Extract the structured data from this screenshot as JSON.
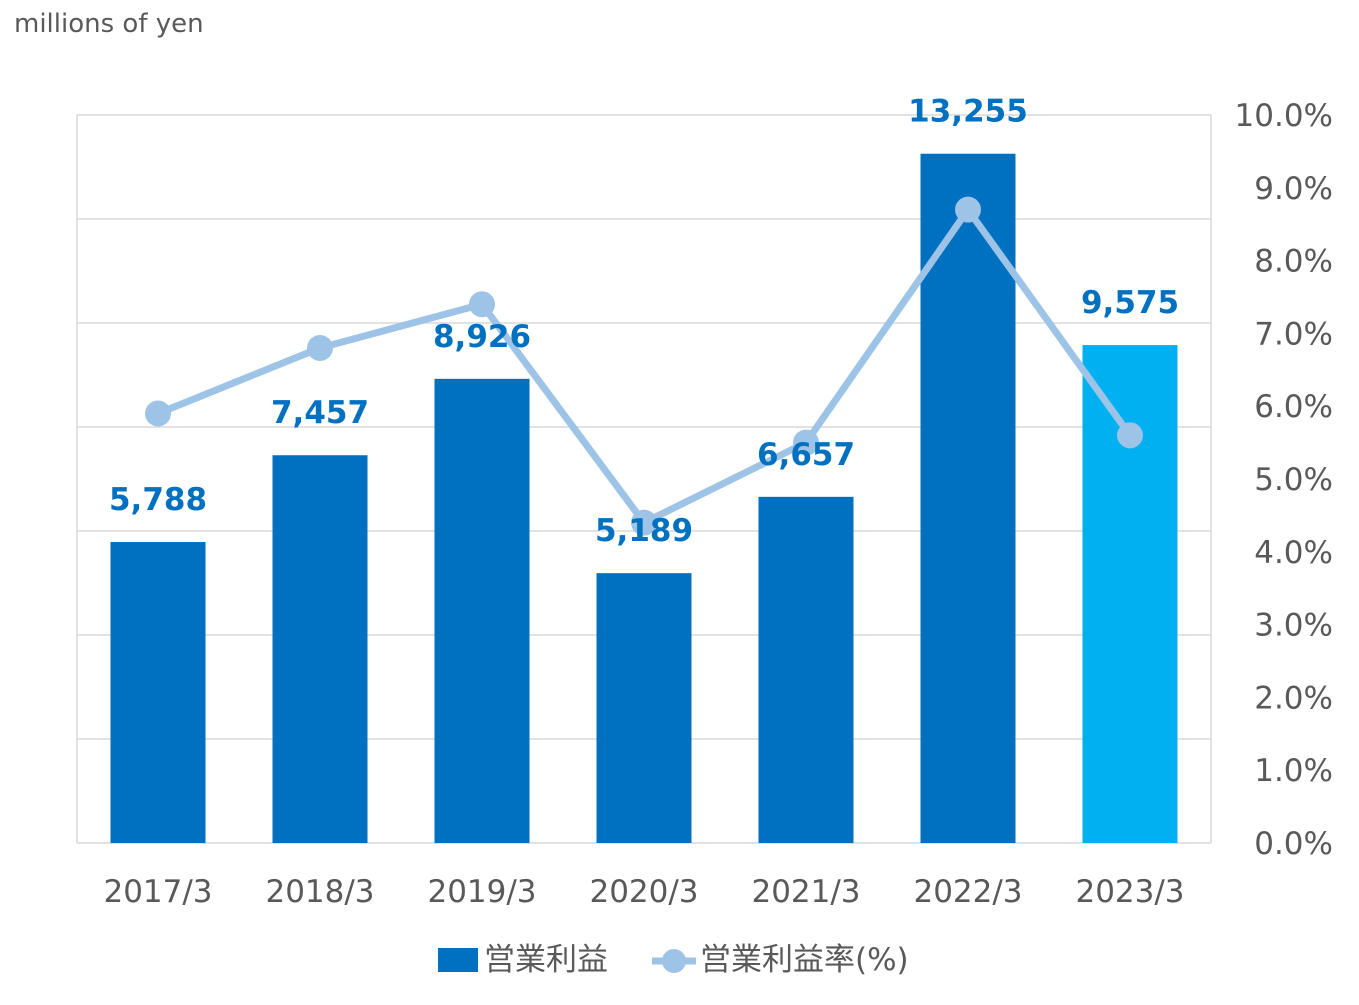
{
  "chart_data": {
    "type": "bar",
    "unit_label": "millions of yen",
    "categories": [
      "2017/3",
      "2018/3",
      "2019/3",
      "2020/3",
      "2021/3",
      "2022/3",
      "2023/3"
    ],
    "series": [
      {
        "name": "営業利益",
        "type": "bar",
        "values": [
          5788,
          7457,
          8926,
          5189,
          6657,
          13255,
          9575
        ],
        "data_labels": [
          "5,788",
          "7,457",
          "8,926",
          "5,189",
          "6,657",
          "13,255",
          "9,575"
        ],
        "color": "#0070C0",
        "highlight_color": "#00B0F0",
        "highlight_index": 6
      },
      {
        "name": "営業利益率(%)",
        "type": "line",
        "axis": "right",
        "values": [
          5.9,
          6.8,
          7.4,
          4.4,
          5.5,
          8.7,
          5.6
        ],
        "color": "#9DC3E6"
      }
    ],
    "ylim_left": [
      0,
      14000
    ],
    "ylim_right": [
      0,
      10.0
    ],
    "right_ticks": [
      "0.0%",
      "1.0%",
      "2.0%",
      "3.0%",
      "4.0%",
      "5.0%",
      "6.0%",
      "7.0%",
      "8.0%",
      "9.0%",
      "10.0%"
    ],
    "grid": true,
    "legend_position": "bottom"
  },
  "colors": {
    "grid": "#D9D9D9",
    "text": "#595959",
    "label": "#0070C0"
  }
}
